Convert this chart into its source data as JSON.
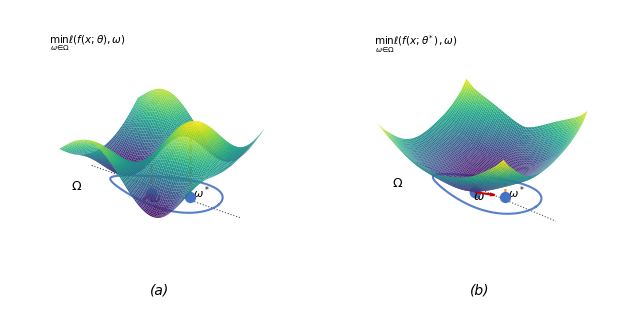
{
  "title_a": "$\\min_{\\omega \\in \\Omega} \\ell(f(x; \\theta), \\omega)$",
  "title_b": "$\\min_{\\omega \\in \\Omega} \\ell(f(x; \\theta^*), \\omega)$",
  "label_a": "(a)",
  "label_b": "(b)",
  "omega_label": "$\\omega$",
  "omega_star_label": "$\\omega^*$",
  "Omega_label": "$\\Omega$",
  "fig_width": 6.4,
  "fig_height": 3.16,
  "background_color": "#ffffff",
  "surface_cmap": "viridis",
  "blob_color": "#4472c4",
  "arrow_color": "#cc0000",
  "dashed_line_color": "#ff8c00",
  "ellipse_color": "#4472c4"
}
